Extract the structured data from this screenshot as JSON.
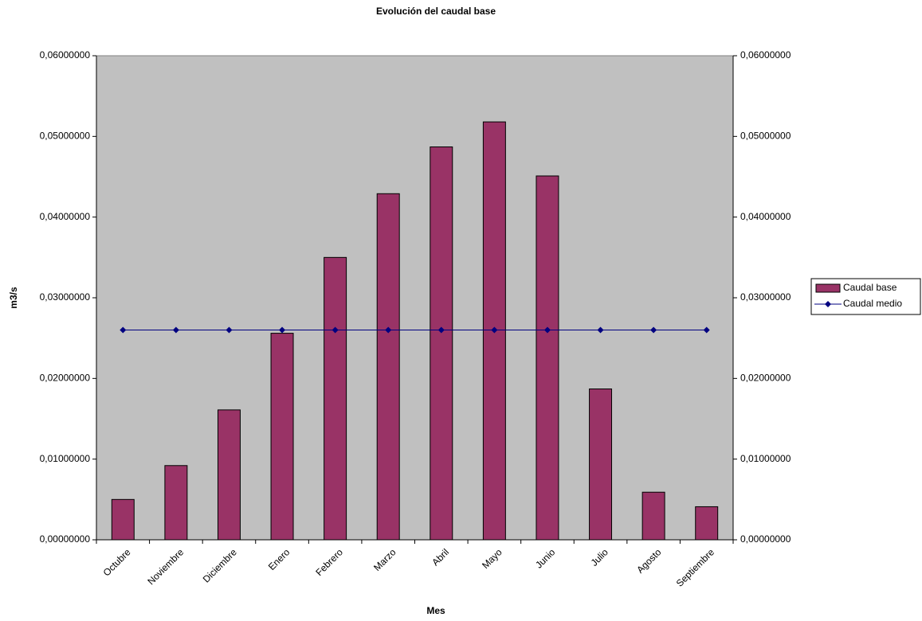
{
  "chart_data": {
    "type": "bar",
    "title": "Evolución del caudal base",
    "x_label": "Mes",
    "y_label": "m3/s",
    "categories": [
      "Octubre",
      "Noviembre",
      "Diciembre",
      "Enero",
      "Febrero",
      "Marzo",
      "Abril",
      "Mayo",
      "Junio",
      "Julio",
      "Agosto",
      "Septiembre"
    ],
    "series": [
      {
        "name": "Caudal base",
        "type": "bar",
        "color": "#993366",
        "values": [
          0.005,
          0.0092,
          0.0161,
          0.0256,
          0.035,
          0.0429,
          0.0487,
          0.0518,
          0.0451,
          0.0187,
          0.0059,
          0.0041
        ]
      },
      {
        "name": "Caudal medio",
        "type": "line",
        "color": "#000080",
        "axis": "y2",
        "values": [
          0.026,
          0.026,
          0.026,
          0.026,
          0.026,
          0.026,
          0.026,
          0.026,
          0.026,
          0.026,
          0.026,
          0.026
        ]
      }
    ],
    "ylim": [
      0,
      0.06
    ],
    "yticks": [
      {
        "value": 0,
        "label": "0,00000000"
      },
      {
        "value": 0.01,
        "label": "0,01000000"
      },
      {
        "value": 0.02,
        "label": "0,02000000"
      },
      {
        "value": 0.03,
        "label": "0,03000000"
      },
      {
        "value": 0.04,
        "label": "0,04000000"
      },
      {
        "value": 0.05,
        "label": "0,05000000"
      },
      {
        "value": 0.06,
        "label": "0,06000000"
      }
    ],
    "y2lim": [
      0,
      0.06
    ],
    "y2ticks": [
      {
        "value": 0,
        "label": "0,00000000"
      },
      {
        "value": 0.01,
        "label": "0,01000000"
      },
      {
        "value": 0.02,
        "label": "0,02000000"
      },
      {
        "value": 0.03,
        "label": "0,03000000"
      },
      {
        "value": 0.04,
        "label": "0,04000000"
      },
      {
        "value": 0.05,
        "label": "0,05000000"
      },
      {
        "value": 0.06,
        "label": "0,06000000"
      }
    ],
    "plot_background": "#c0c0c0",
    "legend": "right"
  }
}
